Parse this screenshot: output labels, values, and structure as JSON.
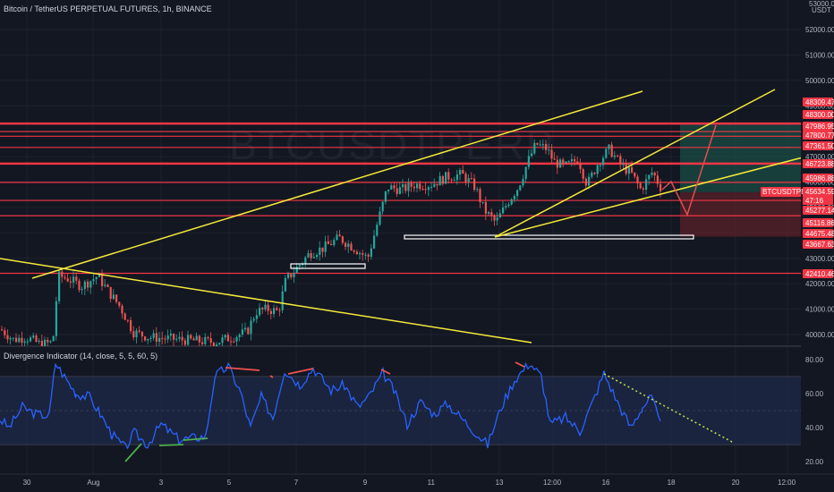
{
  "header": {
    "symbol_title": "Bitcoin / TetherUS PERPETUAL FUTURES, 1h, BINANCE",
    "indicator_title": "Divergence Indicator (14, close, 5, 5, 60, 5)"
  },
  "price_axis": {
    "currency": "USDT",
    "top_partial": "53000.00",
    "ticks": [
      "52000.00",
      "51000.00",
      "50000.00",
      "49000.00",
      "48000.00",
      "47000.00",
      "46000.00",
      "45000.00",
      "44000.00",
      "43000.00",
      "42000.00",
      "41000.00",
      "40000.00"
    ],
    "price_labels": [
      {
        "text": "48309.47",
        "bg": "#f23645"
      },
      {
        "text": "48300.00",
        "bg": "#f23645"
      },
      {
        "text": "47986.95",
        "bg": "#f23645"
      },
      {
        "text": "47800.77",
        "bg": "#f23645"
      },
      {
        "text": "47361.50",
        "bg": "#f23645"
      },
      {
        "text": "46723.88",
        "bg": "#f23645"
      },
      {
        "text": "45986.88",
        "bg": "#f23645"
      },
      {
        "text": "45277.14",
        "bg": "#f23645"
      },
      {
        "text": "45116.86",
        "bg": "#f23645"
      },
      {
        "text": "44675.48",
        "bg": "#f23645"
      },
      {
        "text": "43667.63",
        "bg": "#f23645"
      },
      {
        "text": "42410.46",
        "bg": "#f23645"
      }
    ],
    "current": {
      "symbol": "BTCUSDTPERP",
      "price": "45634.59",
      "countdown": "47:16"
    }
  },
  "indicator_axis": {
    "ticks": [
      "80.00",
      "60.00",
      "40.00",
      "20.00"
    ]
  },
  "time_axis": {
    "ticks": [
      "30",
      "Aug",
      "3",
      "5",
      "7",
      "9",
      "11",
      "13",
      "12:00",
      "16",
      "18",
      "20",
      "12:00"
    ]
  },
  "watermark": {
    "text": "BTCUSDTPERP"
  },
  "colors": {
    "background": "#131722",
    "up": "#26a69a",
    "down": "#ef5350",
    "trendline": "#f5e93b",
    "resistance": "#f23645",
    "rsi_line": "#2962ff",
    "rsi_band": "#1e2a4a",
    "bear_div": "#ef5350",
    "bull_div": "#4caf50",
    "long_target": "#1b5e50",
    "long_stop": "#6b2229"
  }
}
